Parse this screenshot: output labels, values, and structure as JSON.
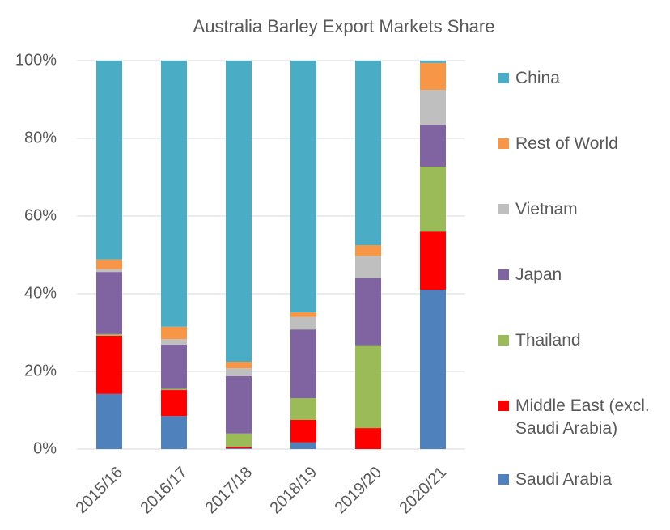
{
  "chart_data": {
    "type": "stacked_bar",
    "title": "Australia Barley Export Markets Share",
    "categories": [
      "2015/16",
      "2016/17",
      "2017/18",
      "2018/19",
      "2019/20",
      "2020/21"
    ],
    "series": [
      {
        "name": "Saudi Arabia",
        "color": "#4f81bd",
        "values": [
          14.2,
          8.5,
          0.2,
          1.7,
          0,
          41.0
        ]
      },
      {
        "name": "Middle East (excl. Saudi Arabia)",
        "color": "#ff0000",
        "values": [
          15.0,
          6.7,
          0.4,
          5.8,
          5.4,
          15.0
        ]
      },
      {
        "name": "Thailand",
        "color": "#9bbb59",
        "values": [
          0.4,
          0.3,
          3.4,
          5.6,
          21.3,
          16.7
        ]
      },
      {
        "name": "Japan",
        "color": "#8064a2",
        "values": [
          16.0,
          11.4,
          14.8,
          17.7,
          17.3,
          10.8
        ]
      },
      {
        "name": "Vietnam",
        "color": "#bfbfbf",
        "values": [
          0.7,
          1.4,
          2.0,
          3.2,
          5.8,
          9.0
        ]
      },
      {
        "name": "Rest of World",
        "color": "#f79646",
        "values": [
          2.5,
          3.2,
          1.7,
          1.2,
          2.7,
          6.9
        ]
      },
      {
        "name": "China",
        "color": "#4bacc6",
        "values": [
          51.2,
          68.5,
          77.5,
          64.8,
          47.5,
          0.6
        ]
      }
    ],
    "ylim": [
      0,
      100
    ],
    "yticks": [
      {
        "value": 0,
        "label": "0%"
      },
      {
        "value": 20,
        "label": "20%"
      },
      {
        "value": 40,
        "label": "40%"
      },
      {
        "value": 60,
        "label": "60%"
      },
      {
        "value": 80,
        "label": "80%"
      },
      {
        "value": 100,
        "label": "100%"
      }
    ],
    "grid": true,
    "legend": "right"
  }
}
